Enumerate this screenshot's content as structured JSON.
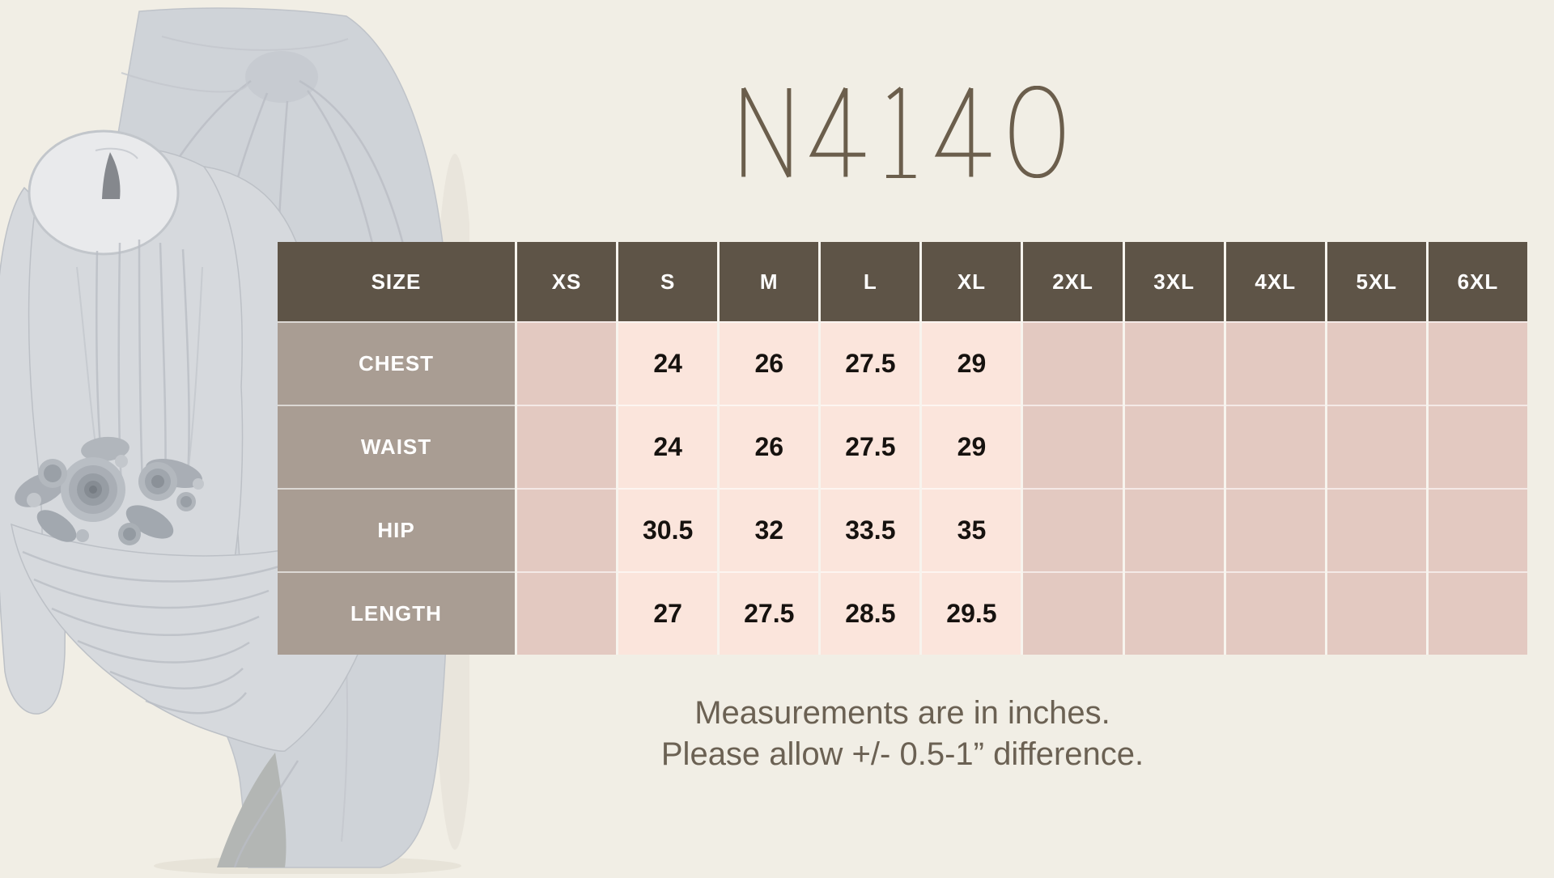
{
  "header": {
    "title": "N4140"
  },
  "chart_data": {
    "type": "table",
    "title": "N4140",
    "columns": [
      "SIZE",
      "XS",
      "S",
      "M",
      "L",
      "XL",
      "2XL",
      "3XL",
      "4XL",
      "5XL",
      "6XL"
    ],
    "rows": [
      {
        "label": "CHEST",
        "values": [
          "",
          "24",
          "26",
          "27.5",
          "29",
          "",
          "",
          "",
          "",
          ""
        ]
      },
      {
        "label": "WAIST",
        "values": [
          "",
          "24",
          "26",
          "27.5",
          "29",
          "",
          "",
          "",
          "",
          ""
        ]
      },
      {
        "label": "HIP",
        "values": [
          "",
          "30.5",
          "32",
          "33.5",
          "35",
          "",
          "",
          "",
          "",
          ""
        ]
      },
      {
        "label": "LENGTH",
        "values": [
          "",
          "27",
          "27.5",
          "28.5",
          "29.5",
          "",
          "",
          "",
          "",
          ""
        ]
      }
    ],
    "units": "inches",
    "notes": [
      "Measurements are in inches.",
      "Please allow +/- 0.5-1” difference."
    ]
  },
  "note": {
    "line1": "Measurements are in inches.",
    "line2": "Please allow +/- 0.5-1” difference."
  },
  "colors": {
    "background": "#f1eee5",
    "header_bg": "#5e5447",
    "label_bg": "#a99d93",
    "value_bg": "#fbe5dc",
    "empty_bg": "#e3c9c1",
    "title_color": "#6b5e4c",
    "note_color": "#6b6153",
    "garment_main": "#cfd3d8",
    "garment_light": "#d6d9dd",
    "garment_dark": "#b3b6b4"
  }
}
